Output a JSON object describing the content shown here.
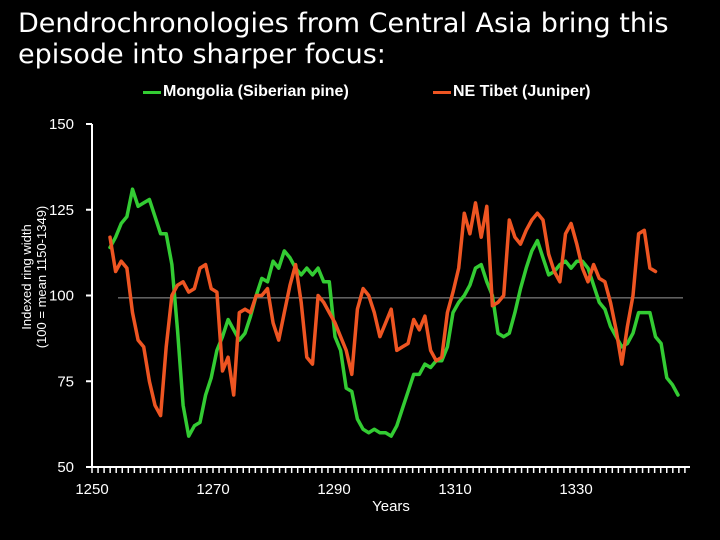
{
  "slide": {
    "title": "Dendrochronologies from Central Asia bring this episode into sharper focus:"
  },
  "chart_data": {
    "type": "line",
    "title": "Dendrochronologies from Central Asia bring this episode into sharper focus:",
    "xlabel": "Years",
    "ylabel": "Indexed ring width\n(100 = mean 1150-1349)",
    "xlim": [
      1250,
      1347
    ],
    "ylim": [
      50,
      150
    ],
    "x_ticks": [
      1250,
      1270,
      1290,
      1310,
      1330
    ],
    "y_ticks": [
      50,
      75,
      100,
      125,
      150
    ],
    "reference_line": 99.3,
    "legend_position": "top",
    "series": [
      {
        "name": "Mongolia (Siberian pine)",
        "color": "#33cc33",
        "points": [
          [
            1250,
            114
          ],
          [
            1251,
            117
          ],
          [
            1252,
            121
          ],
          [
            1253,
            123
          ],
          [
            1254,
            131
          ],
          [
            1255,
            126
          ],
          [
            1256,
            127
          ],
          [
            1257,
            128
          ],
          [
            1258,
            123
          ],
          [
            1259,
            118
          ],
          [
            1260,
            118
          ],
          [
            1261,
            109
          ],
          [
            1262,
            90
          ],
          [
            1263,
            68
          ],
          [
            1264,
            59
          ],
          [
            1265,
            62
          ],
          [
            1266,
            63
          ],
          [
            1267,
            71
          ],
          [
            1268,
            76
          ],
          [
            1269,
            84
          ],
          [
            1270,
            88
          ],
          [
            1271,
            93
          ],
          [
            1272,
            90
          ],
          [
            1273,
            87
          ],
          [
            1274,
            89
          ],
          [
            1275,
            94
          ],
          [
            1276,
            100
          ],
          [
            1277,
            105
          ],
          [
            1278,
            104
          ],
          [
            1279,
            110
          ],
          [
            1280,
            108
          ],
          [
            1281,
            113
          ],
          [
            1282,
            111
          ],
          [
            1283,
            108
          ],
          [
            1284,
            106
          ],
          [
            1285,
            108
          ],
          [
            1286,
            106
          ],
          [
            1287,
            108
          ],
          [
            1288,
            104
          ],
          [
            1289,
            104
          ],
          [
            1290,
            88
          ],
          [
            1291,
            84
          ],
          [
            1292,
            73
          ],
          [
            1293,
            72
          ],
          [
            1294,
            64
          ],
          [
            1295,
            61
          ],
          [
            1296,
            60
          ],
          [
            1297,
            61
          ],
          [
            1298,
            60
          ],
          [
            1299,
            60
          ],
          [
            1300,
            59
          ],
          [
            1301,
            62
          ],
          [
            1302,
            67
          ],
          [
            1303,
            72
          ],
          [
            1304,
            77
          ],
          [
            1305,
            77
          ],
          [
            1306,
            80
          ],
          [
            1307,
            79
          ],
          [
            1308,
            81
          ],
          [
            1309,
            81
          ],
          [
            1310,
            85
          ],
          [
            1311,
            95
          ],
          [
            1312,
            98
          ],
          [
            1313,
            100
          ],
          [
            1314,
            103
          ],
          [
            1315,
            108
          ],
          [
            1316,
            109
          ],
          [
            1317,
            104
          ],
          [
            1318,
            100
          ],
          [
            1319,
            89
          ],
          [
            1320,
            88
          ],
          [
            1321,
            89
          ],
          [
            1322,
            95
          ],
          [
            1323,
            102
          ],
          [
            1324,
            108
          ],
          [
            1325,
            113
          ],
          [
            1326,
            116
          ],
          [
            1327,
            111
          ],
          [
            1328,
            106
          ],
          [
            1329,
            107
          ],
          [
            1330,
            109
          ],
          [
            1331,
            110
          ],
          [
            1332,
            108
          ],
          [
            1333,
            110
          ],
          [
            1334,
            110
          ],
          [
            1335,
            108
          ],
          [
            1336,
            103
          ],
          [
            1337,
            98
          ],
          [
            1338,
            96
          ],
          [
            1339,
            91
          ],
          [
            1340,
            88
          ],
          [
            1341,
            85
          ],
          [
            1342,
            86
          ],
          [
            1343,
            89
          ],
          [
            1344,
            95
          ],
          [
            1345,
            95
          ],
          [
            1346,
            95
          ],
          [
            1347,
            88
          ],
          [
            1348,
            86
          ],
          [
            1349,
            76
          ],
          [
            1350,
            74
          ],
          [
            1351,
            71
          ]
        ]
      },
      {
        "name": "NE Tibet (Juniper)",
        "color": "#ee5522",
        "points": [
          [
            1250,
            117
          ],
          [
            1251,
            107
          ],
          [
            1252,
            110
          ],
          [
            1253,
            108
          ],
          [
            1254,
            95
          ],
          [
            1255,
            87
          ],
          [
            1256,
            85
          ],
          [
            1257,
            75
          ],
          [
            1258,
            68
          ],
          [
            1259,
            65
          ],
          [
            1260,
            85
          ],
          [
            1261,
            100
          ],
          [
            1262,
            103
          ],
          [
            1263,
            104
          ],
          [
            1264,
            101
          ],
          [
            1265,
            102
          ],
          [
            1266,
            108
          ],
          [
            1267,
            109
          ],
          [
            1268,
            102
          ],
          [
            1269,
            101
          ],
          [
            1270,
            78
          ],
          [
            1271,
            82
          ],
          [
            1272,
            71
          ],
          [
            1273,
            95
          ],
          [
            1274,
            96
          ],
          [
            1275,
            95
          ],
          [
            1276,
            100
          ],
          [
            1277,
            100
          ],
          [
            1278,
            102
          ],
          [
            1279,
            92
          ],
          [
            1280,
            87
          ],
          [
            1281,
            95
          ],
          [
            1282,
            103
          ],
          [
            1283,
            109
          ],
          [
            1284,
            98
          ],
          [
            1285,
            82
          ],
          [
            1286,
            80
          ],
          [
            1287,
            100
          ],
          [
            1288,
            98
          ],
          [
            1289,
            95
          ],
          [
            1290,
            92
          ],
          [
            1291,
            88
          ],
          [
            1292,
            84
          ],
          [
            1293,
            77
          ],
          [
            1294,
            96
          ],
          [
            1295,
            102
          ],
          [
            1296,
            100
          ],
          [
            1297,
            95
          ],
          [
            1298,
            88
          ],
          [
            1299,
            92
          ],
          [
            1300,
            96
          ],
          [
            1301,
            84
          ],
          [
            1302,
            85
          ],
          [
            1303,
            86
          ],
          [
            1304,
            93
          ],
          [
            1305,
            90
          ],
          [
            1306,
            94
          ],
          [
            1307,
            84
          ],
          [
            1308,
            81
          ],
          [
            1309,
            82
          ],
          [
            1310,
            95
          ],
          [
            1311,
            101
          ],
          [
            1312,
            108
          ],
          [
            1313,
            124
          ],
          [
            1314,
            118
          ],
          [
            1315,
            127
          ],
          [
            1316,
            117
          ],
          [
            1317,
            126
          ],
          [
            1318,
            97
          ],
          [
            1319,
            98
          ],
          [
            1320,
            100
          ],
          [
            1321,
            122
          ],
          [
            1322,
            117
          ],
          [
            1323,
            115
          ],
          [
            1324,
            119
          ],
          [
            1325,
            122
          ],
          [
            1326,
            124
          ],
          [
            1327,
            122
          ],
          [
            1328,
            112
          ],
          [
            1329,
            107
          ],
          [
            1330,
            104
          ],
          [
            1331,
            118
          ],
          [
            1332,
            121
          ],
          [
            1333,
            115
          ],
          [
            1334,
            108
          ],
          [
            1335,
            104
          ],
          [
            1336,
            109
          ],
          [
            1337,
            105
          ],
          [
            1338,
            104
          ],
          [
            1339,
            98
          ],
          [
            1340,
            90
          ],
          [
            1341,
            80
          ],
          [
            1342,
            91
          ],
          [
            1343,
            100
          ],
          [
            1344,
            118
          ],
          [
            1345,
            119
          ],
          [
            1346,
            108
          ],
          [
            1347,
            107
          ]
        ]
      }
    ]
  }
}
